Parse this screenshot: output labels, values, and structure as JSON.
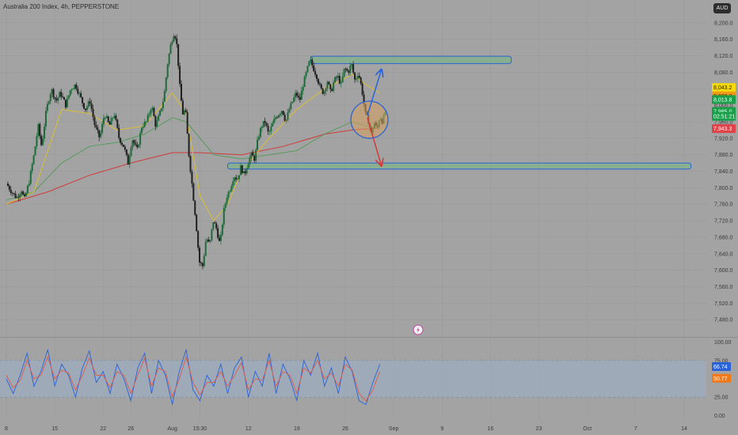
{
  "header": {
    "title": "Australia 200 Index, 4h, PEPPERSTONE",
    "currency": "AUD"
  },
  "colors": {
    "bull": "#1e6a3a",
    "bear": "#1f1f1f",
    "ema_fast": "#e0c22a",
    "ema_mid": "#4f9b55",
    "ema_slow": "#d23a3a",
    "zone": "#7fb38a",
    "zone_border": "#2a62d8",
    "arrow_up": "#2a62d8",
    "arrow_down": "#d23a3a",
    "stoch_k": "#2a62d8",
    "stoch_d": "#e05a4a"
  },
  "chart_data": [
    {
      "type": "candlestick",
      "title": "Australia 200 Index, 4h, PEPPERSTONE",
      "ylim": [
        7440,
        8240
      ],
      "y_ticks": [
        "8,200.0",
        "8,160.0",
        "8,120.0",
        "8,080.0",
        "8,040.0",
        "8,000.0",
        "7,960.0",
        "7,920.0",
        "7,880.0",
        "7,840.0",
        "7,800.0",
        "7,760.0",
        "7,720.0",
        "7,680.0",
        "7,640.0",
        "7,600.0",
        "7,560.0",
        "7,520.0",
        "7,480.0"
      ],
      "x_ticks": [
        "8",
        "15",
        "22",
        "26",
        "Aug",
        "15:30",
        "12",
        "19",
        "26",
        "Sep",
        "9",
        "16",
        "23",
        "Oct",
        "7",
        "14"
      ],
      "x_tick_days": [
        0,
        7,
        14,
        18,
        24,
        28,
        35,
        42,
        49,
        56,
        63,
        70,
        77,
        84,
        91,
        98
      ],
      "x_range_days": [
        0,
        98
      ],
      "price_path": [
        [
          0,
          7810
        ],
        [
          0.8,
          7790
        ],
        [
          1.5,
          7775
        ],
        [
          2.2,
          7795
        ],
        [
          2.6,
          7770
        ],
        [
          3.3,
          7815
        ],
        [
          4,
          7880
        ],
        [
          4.6,
          7950
        ],
        [
          5.1,
          7900
        ],
        [
          5.8,
          7990
        ],
        [
          6.5,
          8040
        ],
        [
          7.2,
          8010
        ],
        [
          7.8,
          8030
        ],
        [
          8.6,
          8000
        ],
        [
          9.3,
          8040
        ],
        [
          10,
          8050
        ],
        [
          10.7,
          8020
        ],
        [
          11.4,
          7990
        ],
        [
          12.1,
          8010
        ],
        [
          12.8,
          7950
        ],
        [
          13.5,
          7920
        ],
        [
          14.2,
          7980
        ],
        [
          14.9,
          7950
        ],
        [
          15.6,
          7980
        ],
        [
          16.3,
          7920
        ],
        [
          17,
          7900
        ],
        [
          17.6,
          7860
        ],
        [
          18.2,
          7920
        ],
        [
          18.9,
          7890
        ],
        [
          19.6,
          7950
        ],
        [
          20.3,
          7960
        ],
        [
          21,
          8000
        ],
        [
          21.6,
          7950
        ],
        [
          22.2,
          7980
        ],
        [
          22.8,
          8020
        ],
        [
          23.3,
          8100
        ],
        [
          23.8,
          8150
        ],
        [
          24.3,
          8180
        ],
        [
          24.7,
          8140
        ],
        [
          25.1,
          8040
        ],
        [
          25.5,
          7980
        ],
        [
          25.9,
          7990
        ],
        [
          26.4,
          7880
        ],
        [
          26.9,
          7800
        ],
        [
          27.4,
          7720
        ],
        [
          27.9,
          7620
        ],
        [
          28.4,
          7610
        ],
        [
          28.9,
          7680
        ],
        [
          29.4,
          7660
        ],
        [
          29.9,
          7720
        ],
        [
          30.4,
          7700
        ],
        [
          30.9,
          7660
        ],
        [
          31.4,
          7740
        ],
        [
          31.9,
          7780
        ],
        [
          32.4,
          7800
        ],
        [
          32.9,
          7830
        ],
        [
          33.4,
          7820
        ],
        [
          33.9,
          7850
        ],
        [
          34.4,
          7830
        ],
        [
          34.9,
          7860
        ],
        [
          35.4,
          7880
        ],
        [
          35.9,
          7870
        ],
        [
          36.4,
          7920
        ],
        [
          36.9,
          7950
        ],
        [
          37.4,
          7960
        ],
        [
          37.9,
          7930
        ],
        [
          38.4,
          7950
        ],
        [
          38.9,
          7970
        ],
        [
          39.4,
          7980
        ],
        [
          39.9,
          7990
        ],
        [
          40.4,
          7960
        ],
        [
          40.9,
          7990
        ],
        [
          41.4,
          8010
        ],
        [
          41.9,
          8030
        ],
        [
          42.4,
          8010
        ],
        [
          42.9,
          8050
        ],
        [
          43.4,
          8080
        ],
        [
          43.9,
          8110
        ],
        [
          44.4,
          8090
        ],
        [
          44.9,
          8070
        ],
        [
          45.4,
          8040
        ],
        [
          45.9,
          8030
        ],
        [
          46.4,
          8060
        ],
        [
          46.9,
          8030
        ],
        [
          47.4,
          8060
        ],
        [
          47.9,
          8070
        ],
        [
          48.4,
          8050
        ],
        [
          48.9,
          8090
        ],
        [
          49.4,
          8080
        ],
        [
          49.9,
          8100
        ],
        [
          50.4,
          8060
        ],
        [
          50.9,
          8080
        ],
        [
          51.4,
          8040
        ],
        [
          51.9,
          7980
        ],
        [
          52.4,
          7960
        ],
        [
          52.8,
          7930
        ],
        [
          53.2,
          7960
        ],
        [
          53.6,
          7940
        ],
        [
          54,
          7975
        ],
        [
          54.4,
          7960
        ],
        [
          54.8,
          7985
        ]
      ],
      "ema_fast": [
        [
          0,
          7760
        ],
        [
          4,
          7790
        ],
        [
          8,
          7990
        ],
        [
          12,
          7980
        ],
        [
          16,
          7940
        ],
        [
          20,
          7950
        ],
        [
          24,
          8030
        ],
        [
          26,
          7980
        ],
        [
          28,
          7780
        ],
        [
          30,
          7720
        ],
        [
          32,
          7760
        ],
        [
          34,
          7840
        ],
        [
          38,
          7920
        ],
        [
          42,
          7990
        ],
        [
          46,
          8040
        ],
        [
          50,
          8075
        ],
        [
          52,
          8050
        ],
        [
          54,
          8030
        ]
      ],
      "ema_mid": [
        [
          0,
          7770
        ],
        [
          4,
          7790
        ],
        [
          8,
          7860
        ],
        [
          12,
          7900
        ],
        [
          16,
          7910
        ],
        [
          20,
          7930
        ],
        [
          24,
          7970
        ],
        [
          26,
          7960
        ],
        [
          28,
          7920
        ],
        [
          30,
          7880
        ],
        [
          34,
          7870
        ],
        [
          38,
          7880
        ],
        [
          42,
          7890
        ],
        [
          46,
          7930
        ],
        [
          50,
          7960
        ],
        [
          52,
          7950
        ],
        [
          54,
          7945
        ]
      ],
      "ema_slow": [
        [
          0,
          7760
        ],
        [
          6,
          7790
        ],
        [
          12,
          7830
        ],
        [
          18,
          7860
        ],
        [
          24,
          7885
        ],
        [
          28,
          7885
        ],
        [
          34,
          7880
        ],
        [
          40,
          7900
        ],
        [
          46,
          7930
        ],
        [
          50,
          7940
        ],
        [
          54,
          7945
        ]
      ],
      "zones": [
        {
          "from_day": 44,
          "to_day": 73,
          "low": 8105,
          "high": 8115
        },
        {
          "from_day": 32,
          "to_day": 99,
          "low": 7849,
          "high": 7856
        }
      ],
      "arrows": [
        {
          "direction": "up",
          "from": [
            52.2,
            7975
          ],
          "to": [
            54.2,
            8085
          ]
        },
        {
          "direction": "down",
          "from": [
            52.2,
            7970
          ],
          "to": [
            54.2,
            7855
          ]
        }
      ],
      "circle": {
        "center": [
          52.5,
          7965
        ],
        "radius_price": 45
      },
      "price_tags": [
        {
          "label": "8,043.2",
          "price": 8043.2,
          "bg": "#f5d90a",
          "fg": "#222222"
        },
        {
          "label": "8,022.7",
          "price": 8022.7,
          "bg": "#f09a1a",
          "fg": "#222222"
        },
        {
          "label": "8,013.8",
          "price": 8013.8,
          "bg": "#1a9e4a",
          "fg": "#ffffff"
        },
        {
          "label": "7,985.0",
          "price": 7985.0,
          "bg": "#1a9e4a",
          "fg": "#ffffff"
        },
        {
          "label": "02:51:21",
          "price": 7973,
          "bg": "#1a9e4a",
          "fg": "#ffffff"
        },
        {
          "label": "7,943.3",
          "price": 7943.3,
          "bg": "#e0424a",
          "fg": "#ffffff"
        }
      ]
    },
    {
      "type": "line",
      "title": "",
      "ylim": [
        -5,
        105
      ],
      "y_ticks": [
        "100.00",
        "75.00",
        "50.00",
        "25.00",
        "0.00"
      ],
      "band": [
        25,
        75
      ],
      "series": [
        {
          "values": [
            [
              0,
              50
            ],
            [
              1,
              30
            ],
            [
              2,
              55
            ],
            [
              3,
              85
            ],
            [
              4,
              40
            ],
            [
              5,
              60
            ],
            [
              6,
              90
            ],
            [
              7,
              40
            ],
            [
              8,
              70
            ],
            [
              9,
              55
            ],
            [
              10,
              25
            ],
            [
              11,
              65
            ],
            [
              12,
              88
            ],
            [
              13,
              45
            ],
            [
              14,
              60
            ],
            [
              15,
              30
            ],
            [
              16,
              70
            ],
            [
              17,
              50
            ],
            [
              18,
              20
            ],
            [
              19,
              65
            ],
            [
              20,
              85
            ],
            [
              21,
              30
            ],
            [
              22,
              75
            ],
            [
              23,
              55
            ],
            [
              24,
              15
            ],
            [
              25,
              60
            ],
            [
              26,
              90
            ],
            [
              27,
              35
            ],
            [
              28,
              20
            ],
            [
              29,
              55
            ],
            [
              30,
              40
            ],
            [
              31,
              70
            ],
            [
              32,
              30
            ],
            [
              33,
              65
            ],
            [
              34,
              80
            ],
            [
              35,
              25
            ],
            [
              36,
              60
            ],
            [
              37,
              40
            ],
            [
              38,
              85
            ],
            [
              39,
              30
            ],
            [
              40,
              70
            ],
            [
              41,
              50
            ],
            [
              42,
              20
            ],
            [
              43,
              75
            ],
            [
              44,
              55
            ],
            [
              45,
              85
            ],
            [
              46,
              40
            ],
            [
              47,
              65
            ],
            [
              48,
              30
            ],
            [
              49,
              80
            ],
            [
              50,
              60
            ],
            [
              51,
              20
            ],
            [
              52,
              15
            ],
            [
              53,
              45
            ],
            [
              54,
              70
            ]
          ]
        },
        {
          "values": [
            [
              0,
              55
            ],
            [
              1,
              38
            ],
            [
              2,
              48
            ],
            [
              3,
              75
            ],
            [
              4,
              50
            ],
            [
              5,
              55
            ],
            [
              6,
              80
            ],
            [
              7,
              50
            ],
            [
              8,
              62
            ],
            [
              9,
              58
            ],
            [
              10,
              35
            ],
            [
              11,
              55
            ],
            [
              12,
              78
            ],
            [
              13,
              55
            ],
            [
              14,
              55
            ],
            [
              15,
              38
            ],
            [
              16,
              60
            ],
            [
              17,
              55
            ],
            [
              18,
              30
            ],
            [
              19,
              55
            ],
            [
              20,
              78
            ],
            [
              21,
              40
            ],
            [
              22,
              65
            ],
            [
              23,
              60
            ],
            [
              24,
              25
            ],
            [
              25,
              50
            ],
            [
              26,
              80
            ],
            [
              27,
              45
            ],
            [
              28,
              28
            ],
            [
              29,
              45
            ],
            [
              30,
              45
            ],
            [
              31,
              60
            ],
            [
              32,
              40
            ],
            [
              33,
              55
            ],
            [
              34,
              72
            ],
            [
              35,
              35
            ],
            [
              36,
              50
            ],
            [
              37,
              48
            ],
            [
              38,
              75
            ],
            [
              39,
              40
            ],
            [
              40,
              60
            ],
            [
              41,
              55
            ],
            [
              42,
              30
            ],
            [
              43,
              65
            ],
            [
              44,
              58
            ],
            [
              45,
              75
            ],
            [
              46,
              50
            ],
            [
              47,
              58
            ],
            [
              48,
              40
            ],
            [
              49,
              70
            ],
            [
              50,
              62
            ],
            [
              51,
              30
            ],
            [
              52,
              20
            ],
            [
              53,
              35
            ],
            [
              54,
              60
            ]
          ]
        }
      ],
      "value_tags": [
        {
          "label": "66.74",
          "value": 66.74,
          "bg": "#2a62d8",
          "fg": "#ffffff"
        },
        {
          "label": "50.77",
          "value": 50.77,
          "bg": "#f07a1a",
          "fg": "#ffffff"
        }
      ]
    }
  ]
}
